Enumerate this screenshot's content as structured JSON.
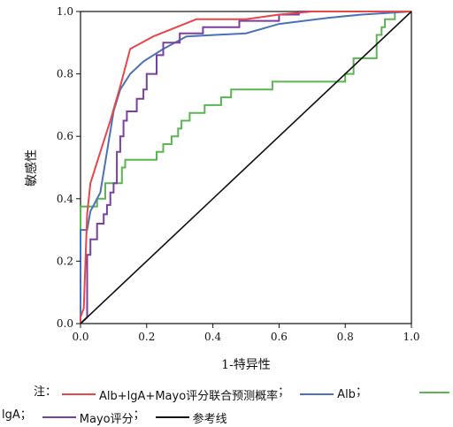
{
  "chart_data": {
    "type": "line",
    "title": "",
    "xlabel": "1-特异性",
    "ylabel": "敏感性",
    "xlim": [
      0.0,
      1.0
    ],
    "ylim": [
      0.0,
      1.0
    ],
    "x_ticks": [
      "0.0",
      "0.2",
      "0.4",
      "0.6",
      "0.8",
      "1.0"
    ],
    "y_ticks": [
      "0.0",
      "0.2",
      "0.4",
      "0.6",
      "0.8",
      "1.0"
    ],
    "grid": false,
    "legend_position": "bottom",
    "series": [
      {
        "name": "Alb+lgA+Mayo评分联合预测概率",
        "color": "#e8474a",
        "points": [
          [
            0,
            0
          ],
          [
            0,
            0.02
          ],
          [
            0.01,
            0.05
          ],
          [
            0.015,
            0.2
          ],
          [
            0.02,
            0.35
          ],
          [
            0.03,
            0.45
          ],
          [
            0.06,
            0.55
          ],
          [
            0.09,
            0.65
          ],
          [
            0.12,
            0.76
          ],
          [
            0.15,
            0.88
          ],
          [
            0.22,
            0.92
          ],
          [
            0.35,
            0.975
          ],
          [
            0.5,
            0.975
          ],
          [
            0.6,
            0.99
          ],
          [
            0.7,
            1.0
          ],
          [
            1.0,
            1.0
          ]
        ]
      },
      {
        "name": "Alb",
        "color": "#4a72b8",
        "points": [
          [
            0,
            0
          ],
          [
            0,
            0.3
          ],
          [
            0.02,
            0.3
          ],
          [
            0.03,
            0.36
          ],
          [
            0.04,
            0.38
          ],
          [
            0.06,
            0.42
          ],
          [
            0.08,
            0.55
          ],
          [
            0.1,
            0.68
          ],
          [
            0.12,
            0.75
          ],
          [
            0.15,
            0.8
          ],
          [
            0.19,
            0.84
          ],
          [
            0.25,
            0.88
          ],
          [
            0.32,
            0.92
          ],
          [
            0.5,
            0.93
          ],
          [
            0.6,
            0.96
          ],
          [
            0.75,
            0.98
          ],
          [
            0.85,
            0.99
          ],
          [
            1.0,
            1.0
          ]
        ]
      },
      {
        "name": "lgA",
        "color": "#5ab552",
        "points": [
          [
            0,
            0
          ],
          [
            0,
            0.375
          ],
          [
            0.05,
            0.375
          ],
          [
            0.05,
            0.4
          ],
          [
            0.075,
            0.4
          ],
          [
            0.075,
            0.45
          ],
          [
            0.125,
            0.45
          ],
          [
            0.125,
            0.5
          ],
          [
            0.135,
            0.5
          ],
          [
            0.135,
            0.525
          ],
          [
            0.23,
            0.525
          ],
          [
            0.23,
            0.55
          ],
          [
            0.25,
            0.55
          ],
          [
            0.25,
            0.575
          ],
          [
            0.275,
            0.575
          ],
          [
            0.275,
            0.6
          ],
          [
            0.295,
            0.6
          ],
          [
            0.295,
            0.625
          ],
          [
            0.305,
            0.625
          ],
          [
            0.305,
            0.65
          ],
          [
            0.33,
            0.65
          ],
          [
            0.33,
            0.675
          ],
          [
            0.375,
            0.675
          ],
          [
            0.375,
            0.7
          ],
          [
            0.425,
            0.7
          ],
          [
            0.425,
            0.725
          ],
          [
            0.455,
            0.725
          ],
          [
            0.455,
            0.75
          ],
          [
            0.58,
            0.75
          ],
          [
            0.58,
            0.775
          ],
          [
            0.8,
            0.775
          ],
          [
            0.8,
            0.8
          ],
          [
            0.825,
            0.8
          ],
          [
            0.825,
            0.85
          ],
          [
            0.895,
            0.85
          ],
          [
            0.895,
            0.925
          ],
          [
            0.91,
            0.925
          ],
          [
            0.91,
            0.95
          ],
          [
            0.92,
            0.95
          ],
          [
            0.92,
            0.975
          ],
          [
            0.95,
            0.975
          ],
          [
            0.95,
            1.0
          ],
          [
            1.0,
            1.0
          ]
        ]
      },
      {
        "name": "Mayo评分",
        "color": "#7b3f9e",
        "points": [
          [
            0,
            0
          ],
          [
            0.02,
            0.02
          ],
          [
            0.02,
            0.22
          ],
          [
            0.03,
            0.22
          ],
          [
            0.03,
            0.27
          ],
          [
            0.05,
            0.27
          ],
          [
            0.05,
            0.32
          ],
          [
            0.07,
            0.32
          ],
          [
            0.07,
            0.35
          ],
          [
            0.08,
            0.35
          ],
          [
            0.08,
            0.38
          ],
          [
            0.09,
            0.38
          ],
          [
            0.09,
            0.42
          ],
          [
            0.1,
            0.42
          ],
          [
            0.1,
            0.45
          ],
          [
            0.11,
            0.45
          ],
          [
            0.11,
            0.55
          ],
          [
            0.12,
            0.55
          ],
          [
            0.12,
            0.6
          ],
          [
            0.13,
            0.6
          ],
          [
            0.13,
            0.65
          ],
          [
            0.14,
            0.65
          ],
          [
            0.14,
            0.68
          ],
          [
            0.17,
            0.68
          ],
          [
            0.17,
            0.72
          ],
          [
            0.19,
            0.72
          ],
          [
            0.19,
            0.75
          ],
          [
            0.2,
            0.75
          ],
          [
            0.2,
            0.8
          ],
          [
            0.23,
            0.8
          ],
          [
            0.23,
            0.86
          ],
          [
            0.25,
            0.86
          ],
          [
            0.25,
            0.9
          ],
          [
            0.3,
            0.9
          ],
          [
            0.3,
            0.93
          ],
          [
            0.37,
            0.93
          ],
          [
            0.37,
            0.95
          ],
          [
            0.48,
            0.95
          ],
          [
            0.48,
            0.97
          ],
          [
            0.6,
            0.97
          ],
          [
            0.6,
            0.99
          ],
          [
            0.66,
            0.99
          ],
          [
            0.66,
            1.0
          ],
          [
            1.0,
            1.0
          ]
        ]
      },
      {
        "name": "参考线",
        "color": "#111111",
        "points": [
          [
            0,
            0
          ],
          [
            1,
            1
          ]
        ]
      }
    ]
  },
  "legend": {
    "prefix": "注：",
    "sep": "；",
    "combined_label": "Alb+lgA+Mayo评分联合预测概率",
    "alb_label": "Alb",
    "iga_label": "lgA",
    "mayo_label": "Mayo评分",
    "ref_label": "参考线"
  }
}
